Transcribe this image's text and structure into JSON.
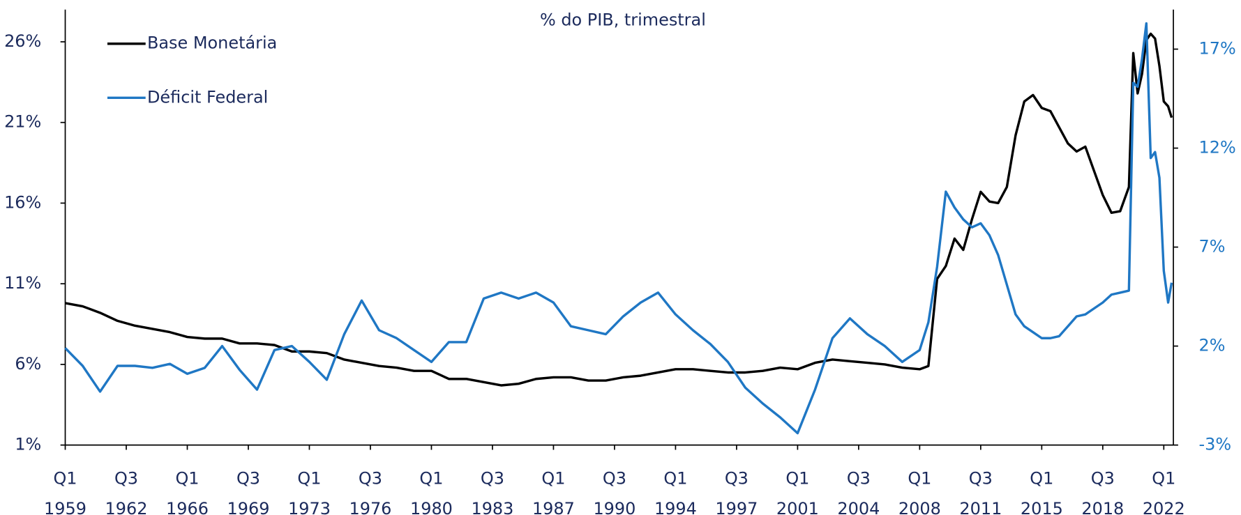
{
  "chart_data": {
    "type": "line",
    "subtitle": "% do PIB, trimestral",
    "x": [
      1959,
      1960,
      1961,
      1962,
      1963,
      1964,
      1965,
      1966,
      1967,
      1968,
      1969,
      1970,
      1971,
      1972,
      1973,
      1974,
      1975,
      1976,
      1977,
      1978,
      1979,
      1980,
      1981,
      1982,
      1983,
      1984,
      1985,
      1986,
      1987,
      1988,
      1989,
      1990,
      1991,
      1992,
      1993,
      1994,
      1995,
      1996,
      1997,
      1998,
      1999,
      2000,
      2001,
      2002,
      2003,
      2004,
      2005,
      2006,
      2007,
      2008,
      2008.5,
      2009,
      2009.5,
      2010,
      2010.5,
      2011,
      2011.5,
      2012,
      2012.5,
      2013,
      2013.5,
      2014,
      2014.5,
      2015,
      2015.5,
      2016,
      2016.5,
      2017,
      2017.5,
      2018,
      2018.5,
      2019,
      2019.5,
      2020,
      2020.25,
      2020.5,
      2020.75,
      2021,
      2021.25,
      2021.5,
      2021.75,
      2022,
      2022.25,
      2022.45
    ],
    "xlim": [
      1959,
      2022.55
    ],
    "xticks": [
      {
        "value": 1959,
        "label": [
          "Q1",
          "1959"
        ]
      },
      {
        "value": 1962.5,
        "label": [
          "Q3",
          "1962"
        ]
      },
      {
        "value": 1966,
        "label": [
          "Q1",
          "1966"
        ]
      },
      {
        "value": 1969.5,
        "label": [
          "Q3",
          "1969"
        ]
      },
      {
        "value": 1973,
        "label": [
          "Q1",
          "1973"
        ]
      },
      {
        "value": 1976.5,
        "label": [
          "Q3",
          "1976"
        ]
      },
      {
        "value": 1980,
        "label": [
          "Q1",
          "1980"
        ]
      },
      {
        "value": 1983.5,
        "label": [
          "Q3",
          "1983"
        ]
      },
      {
        "value": 1987,
        "label": [
          "Q1",
          "1987"
        ]
      },
      {
        "value": 1990.5,
        "label": [
          "Q3",
          "1990"
        ]
      },
      {
        "value": 1994,
        "label": [
          "Q1",
          "1994"
        ]
      },
      {
        "value": 1997.5,
        "label": [
          "Q3",
          "1997"
        ]
      },
      {
        "value": 2001,
        "label": [
          "Q1",
          "2001"
        ]
      },
      {
        "value": 2004.5,
        "label": [
          "Q3",
          "2004"
        ]
      },
      {
        "value": 2008,
        "label": [
          "Q1",
          "2008"
        ]
      },
      {
        "value": 2011.5,
        "label": [
          "Q3",
          "2011"
        ]
      },
      {
        "value": 2015,
        "label": [
          "Q1",
          "2015"
        ]
      },
      {
        "value": 2018.5,
        "label": [
          "Q3",
          "2018"
        ]
      },
      {
        "value": 2022,
        "label": [
          "Q1",
          "2022"
        ]
      }
    ],
    "ylim": [
      1,
      28
    ],
    "yticks": [
      {
        "value": 1,
        "label": "1%"
      },
      {
        "value": 6,
        "label": "6%"
      },
      {
        "value": 11,
        "label": "11%"
      },
      {
        "value": 16,
        "label": "16%"
      },
      {
        "value": 21,
        "label": "21%"
      },
      {
        "value": 26,
        "label": "26%"
      }
    ],
    "y2lim": [
      -3,
      19
    ],
    "y2ticks": [
      {
        "value": -3,
        "label": "-3%"
      },
      {
        "value": 2,
        "label": "2%"
      },
      {
        "value": 7,
        "label": "7%"
      },
      {
        "value": 12,
        "label": "12%"
      },
      {
        "value": 17,
        "label": "17%"
      }
    ],
    "legend": "upper left",
    "series": [
      {
        "name": "Base Monetária",
        "color": "#000000",
        "values": [
          9.8,
          9.6,
          9.2,
          8.7,
          8.4,
          8.2,
          8.0,
          7.7,
          7.6,
          7.6,
          7.3,
          7.3,
          7.2,
          6.8,
          6.8,
          6.7,
          6.3,
          6.1,
          5.9,
          5.8,
          5.6,
          5.6,
          5.1,
          5.1,
          4.9,
          4.7,
          4.8,
          5.1,
          5.2,
          5.2,
          5.0,
          5.0,
          5.2,
          5.3,
          5.5,
          5.7,
          5.7,
          5.6,
          5.5,
          5.5,
          5.6,
          5.8,
          5.7,
          6.1,
          6.3,
          6.2,
          6.1,
          6.0,
          5.8,
          5.7,
          5.9,
          11.3,
          12.1,
          13.8,
          13.1,
          15.0,
          16.7,
          16.1,
          16.0,
          17.0,
          20.2,
          22.3,
          22.7,
          21.9,
          21.7,
          20.7,
          19.7,
          19.2,
          19.5,
          18.0,
          16.5,
          15.4,
          15.5,
          17.0,
          25.3,
          22.8,
          24.0,
          26.1,
          26.5,
          26.2,
          24.5,
          22.3,
          22.0,
          21.3
        ]
      },
      {
        "name": "Déficit Federal",
        "color": "#1f77c4",
        "axis": "y2",
        "values": [
          1.9,
          1.0,
          -0.3,
          1.0,
          1.0,
          0.9,
          1.1,
          0.6,
          0.9,
          2.0,
          0.8,
          -0.2,
          1.8,
          2.0,
          1.2,
          0.3,
          2.6,
          4.3,
          2.8,
          2.4,
          1.8,
          1.2,
          2.2,
          2.2,
          4.4,
          4.7,
          4.4,
          4.7,
          4.2,
          3.0,
          2.8,
          2.6,
          3.5,
          4.2,
          4.7,
          3.6,
          2.8,
          2.1,
          1.2,
          -0.1,
          -0.9,
          -1.6,
          -2.4,
          -0.2,
          2.4,
          3.4,
          2.6,
          2.0,
          1.2,
          1.8,
          3.2,
          6.0,
          9.8,
          9.0,
          8.4,
          8.0,
          8.2,
          7.6,
          6.6,
          5.1,
          3.6,
          3.0,
          2.7,
          2.4,
          2.4,
          2.5,
          3.0,
          3.5,
          3.6,
          3.9,
          4.2,
          4.6,
          4.7,
          4.8,
          15.3,
          15.1,
          16.5,
          18.3,
          11.5,
          11.8,
          10.5,
          5.8,
          4.2,
          5.2
        ]
      }
    ]
  }
}
